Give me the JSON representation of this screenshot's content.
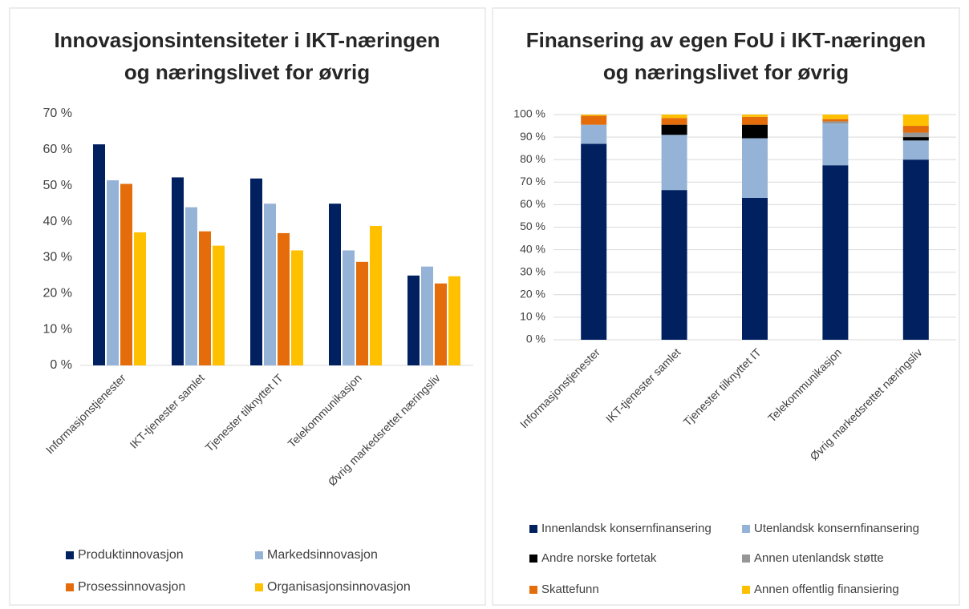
{
  "chart_data": [
    {
      "type": "bar",
      "title": "Innovasjonsintensiteter i IKT-næringen og næringslivet for øvrig",
      "categories": [
        "Informasjonstjenester",
        "IKT-tjenester samlet",
        "Tjenester tilknyttet IT",
        "Telekommunikasjon",
        "Øvrig markedsrettet næringsliv"
      ],
      "series": [
        {
          "name": "Produktinnovasjon",
          "color": "#002060",
          "values": [
            61.5,
            52.3,
            52,
            45,
            25
          ]
        },
        {
          "name": "Markedsinnovasjon",
          "color": "#95b3d7",
          "values": [
            51.5,
            44,
            45,
            32,
            27.5
          ]
        },
        {
          "name": "Prosessinnovasjon",
          "color": "#e46c0a",
          "values": [
            50.5,
            37.3,
            36.8,
            28.8,
            22.8
          ]
        },
        {
          "name": "Organisasjonsinnovasjon",
          "color": "#ffc000",
          "values": [
            37,
            33.3,
            32,
            38.8,
            24.8
          ]
        }
      ],
      "ylim": [
        0,
        70
      ],
      "yticks": [
        {
          "value": 0,
          "label": "0 %"
        },
        {
          "value": 10,
          "label": "10 %"
        },
        {
          "value": 20,
          "label": "20 %"
        },
        {
          "value": 30,
          "label": "30 %"
        },
        {
          "value": 40,
          "label": "40 %"
        },
        {
          "value": 50,
          "label": "50 %"
        },
        {
          "value": 60,
          "label": "60 %"
        },
        {
          "value": 70,
          "label": "70 %"
        }
      ],
      "grid": false,
      "legend": "bottom"
    },
    {
      "type": "stacked_bar",
      "title": "Finansering av egen FoU i IKT-næringen og næringslivet for øvrig",
      "categories": [
        "Informasjonstjenester",
        "IKT-tjenester samlet",
        "Tjenester tilknyttet IT",
        "Telekommunikasjon",
        "Øvrig markedsrettet næringsliv"
      ],
      "series": [
        {
          "name": "Innenlandsk konsernfinansering",
          "color": "#002060",
          "values": [
            87,
            66.5,
            63,
            77.5,
            80
          ]
        },
        {
          "name": "Utenlandsk konsernfinansering",
          "color": "#95b3d7",
          "values": [
            8.5,
            24.5,
            26.5,
            18.5,
            8.5
          ]
        },
        {
          "name": "Andre norske fortetak",
          "color": "#000000",
          "values": [
            0,
            4.5,
            6,
            0,
            1.5
          ]
        },
        {
          "name": "Annen utenlandsk støtte",
          "color": "#969696",
          "values": [
            0,
            0,
            0,
            1,
            2
          ]
        },
        {
          "name": "Skattefunn",
          "color": "#e46c0a",
          "values": [
            4,
            3,
            3.5,
            1,
            3
          ]
        },
        {
          "name": "Annen offentlig finansiering",
          "color": "#ffc000",
          "values": [
            0.5,
            1.5,
            1,
            2,
            5
          ]
        }
      ],
      "ylim": [
        0,
        100
      ],
      "yticks": [
        {
          "value": 0,
          "label": "0 %"
        },
        {
          "value": 10,
          "label": "10 %"
        },
        {
          "value": 20,
          "label": "20 %"
        },
        {
          "value": 30,
          "label": "30 %"
        },
        {
          "value": 40,
          "label": "40 %"
        },
        {
          "value": 50,
          "label": "50 %"
        },
        {
          "value": 60,
          "label": "60 %"
        },
        {
          "value": 70,
          "label": "70 %"
        },
        {
          "value": 80,
          "label": "80 %"
        },
        {
          "value": 90,
          "label": "90 %"
        },
        {
          "value": 100,
          "label": "100 %"
        }
      ],
      "grid": true,
      "legend": "bottom"
    }
  ]
}
